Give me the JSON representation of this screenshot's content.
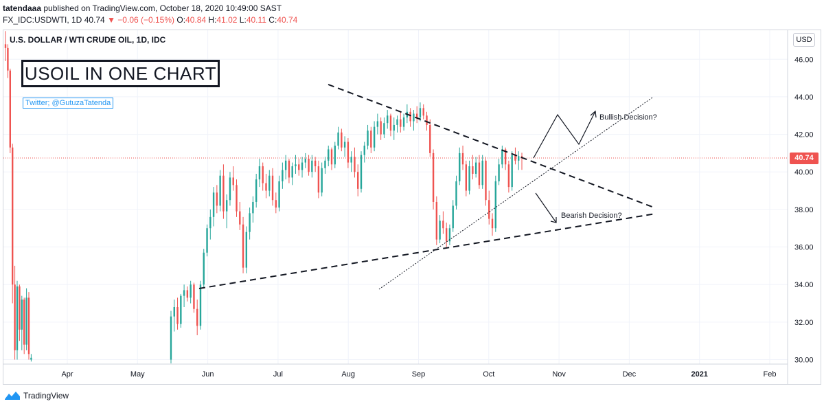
{
  "header": {
    "author": "tatendaaa",
    "published_text": "published on TradingView.com, October 18, 2020 10:49:00 SAST",
    "symbol_line": "FX_IDC:USDWTI, 1D",
    "last": "40.74",
    "arrow": "▼",
    "change": "−0.06 (−0.15%)",
    "open_label": "O:",
    "open": "40.84",
    "high_label": "H:",
    "high": "41.02",
    "low_label": "L:",
    "low": "40.11",
    "close_label": "C:",
    "close": "40.74"
  },
  "chart_title": "U.S. DOLLAR / WTI CRUDE OIL, 1D, IDC",
  "currency_badge": "USD",
  "last_price_tag": "40.74",
  "headline": "USOIL IN ONE CHART",
  "twitter": "Twitter; @GutuzaTatenda",
  "footer": {
    "brand": "TradingView"
  },
  "colors": {
    "up": "#26a69a",
    "down": "#ef5350",
    "text": "#131722",
    "grid": "#f0f3fa"
  },
  "chart_data": {
    "type": "candlestick",
    "y_ticks": [
      "30.00",
      "32.00",
      "34.00",
      "36.00",
      "38.00",
      "40.00",
      "42.00",
      "44.00",
      "46.00"
    ],
    "ylim": [
      29.8,
      47.4
    ],
    "x_ticks": [
      "Apr",
      "May",
      "Jun",
      "Jul",
      "Aug",
      "Sep",
      "Oct",
      "Nov",
      "Dec",
      "2021",
      "Feb"
    ],
    "last_price": 40.74,
    "annotations": [
      "Bullish Decision?",
      "Bearish Decision?"
    ],
    "candles_daily_ohlc_approx": [
      [
        46.8,
        47.5,
        45.9,
        46.6
      ],
      [
        46.6,
        46.8,
        45.0,
        45.4
      ],
      [
        45.4,
        45.5,
        41.0,
        41.3
      ],
      [
        41.3,
        41.5,
        33.0,
        34.0
      ],
      [
        34.0,
        35.0,
        30.0,
        30.5
      ],
      [
        30.5,
        34.2,
        30.0,
        33.9
      ],
      [
        33.9,
        34.0,
        31.0,
        31.6
      ],
      [
        31.6,
        33.4,
        30.5,
        33.2
      ],
      [
        33.2,
        33.3,
        30.3,
        30.8
      ],
      [
        30.8,
        33.8,
        30.5,
        33.3
      ],
      [
        33.3,
        33.6,
        30.0,
        30.3
      ],
      [
        30.0,
        30.3,
        29.9,
        30.1
      ],
      [
        30.0,
        32.6,
        29.8,
        32.3
      ],
      [
        32.3,
        33.2,
        31.5,
        32.8
      ],
      [
        32.8,
        33.3,
        31.6,
        31.9
      ],
      [
        31.9,
        33.5,
        31.7,
        33.4
      ],
      [
        33.4,
        34.0,
        32.8,
        33.7
      ],
      [
        33.7,
        33.9,
        33.1,
        33.3
      ],
      [
        33.3,
        34.2,
        33.0,
        34.0
      ],
      [
        34.0,
        34.1,
        32.5,
        32.7
      ],
      [
        32.7,
        33.2,
        31.3,
        31.8
      ],
      [
        31.8,
        34.2,
        31.6,
        34.0
      ],
      [
        34.0,
        35.9,
        33.8,
        35.7
      ],
      [
        35.7,
        37.2,
        35.5,
        37.0
      ],
      [
        37.0,
        38.0,
        36.4,
        37.6
      ],
      [
        37.6,
        39.2,
        37.1,
        38.9
      ],
      [
        38.9,
        39.3,
        37.8,
        38.2
      ],
      [
        38.2,
        40.1,
        37.9,
        39.8
      ],
      [
        39.8,
        40.4,
        37.5,
        37.9
      ],
      [
        37.9,
        38.8,
        37.0,
        38.5
      ],
      [
        38.5,
        40.0,
        38.2,
        39.7
      ],
      [
        39.7,
        40.3,
        39.0,
        39.3
      ],
      [
        39.3,
        39.6,
        37.6,
        37.9
      ],
      [
        37.9,
        38.4,
        36.9,
        37.2
      ],
      [
        37.2,
        37.6,
        34.6,
        34.9
      ],
      [
        34.9,
        37.1,
        34.6,
        36.8
      ],
      [
        36.8,
        38.1,
        36.4,
        37.8
      ],
      [
        37.8,
        38.7,
        37.3,
        38.4
      ],
      [
        38.4,
        39.9,
        38.1,
        39.6
      ],
      [
        39.6,
        40.7,
        39.2,
        40.3
      ],
      [
        40.3,
        40.5,
        39.0,
        39.4
      ],
      [
        39.4,
        39.9,
        38.6,
        39.0
      ],
      [
        39.0,
        40.1,
        38.7,
        39.8
      ],
      [
        39.8,
        40.2,
        38.2,
        38.5
      ],
      [
        38.5,
        38.9,
        37.8,
        38.1
      ],
      [
        38.1,
        39.8,
        37.9,
        39.5
      ],
      [
        39.5,
        40.5,
        39.1,
        40.1
      ],
      [
        40.1,
        40.9,
        39.6,
        40.6
      ],
      [
        40.6,
        40.7,
        39.4,
        39.7
      ],
      [
        39.7,
        40.5,
        39.3,
        40.3
      ],
      [
        40.3,
        40.9,
        39.9,
        40.4
      ],
      [
        40.4,
        40.7,
        39.8,
        40.1
      ],
      [
        40.1,
        40.8,
        39.7,
        40.5
      ],
      [
        40.5,
        41.0,
        40.2,
        40.7
      ],
      [
        40.7,
        40.9,
        39.8,
        40.0
      ],
      [
        40.0,
        40.9,
        39.7,
        40.6
      ],
      [
        40.6,
        40.8,
        40.0,
        40.3
      ],
      [
        40.3,
        40.6,
        38.6,
        38.9
      ],
      [
        38.9,
        40.5,
        38.7,
        40.2
      ],
      [
        40.2,
        40.8,
        39.9,
        40.6
      ],
      [
        40.6,
        41.4,
        40.3,
        41.2
      ],
      [
        41.2,
        41.3,
        40.1,
        40.4
      ],
      [
        40.4,
        41.6,
        40.2,
        41.4
      ],
      [
        41.4,
        42.4,
        41.2,
        42.1
      ],
      [
        42.1,
        42.3,
        41.1,
        41.3
      ],
      [
        41.3,
        41.9,
        40.8,
        41.6
      ],
      [
        41.6,
        41.8,
        40.2,
        40.5
      ],
      [
        40.5,
        41.1,
        40.0,
        40.8
      ],
      [
        40.8,
        41.3,
        39.7,
        40.0
      ],
      [
        40.0,
        40.4,
        38.7,
        39.1
      ],
      [
        39.1,
        41.1,
        38.9,
        40.9
      ],
      [
        40.9,
        41.6,
        40.5,
        41.4
      ],
      [
        41.4,
        42.5,
        41.2,
        42.2
      ],
      [
        42.2,
        42.4,
        41.0,
        41.3
      ],
      [
        41.3,
        42.7,
        41.1,
        42.4
      ],
      [
        42.4,
        43.1,
        42.0,
        42.7
      ],
      [
        42.7,
        42.9,
        41.7,
        42.0
      ],
      [
        42.0,
        42.9,
        41.8,
        42.6
      ],
      [
        42.6,
        43.3,
        42.3,
        43.0
      ],
      [
        43.0,
        43.1,
        41.9,
        42.2
      ],
      [
        42.2,
        42.9,
        41.7,
        42.5
      ],
      [
        42.5,
        43.0,
        42.1,
        42.8
      ],
      [
        42.8,
        43.2,
        42.1,
        42.4
      ],
      [
        42.4,
        43.1,
        42.2,
        42.9
      ],
      [
        42.9,
        43.6,
        42.6,
        43.2
      ],
      [
        43.2,
        43.4,
        42.4,
        42.7
      ],
      [
        42.7,
        43.3,
        42.2,
        43.1
      ],
      [
        43.1,
        43.5,
        42.6,
        42.9
      ],
      [
        42.9,
        43.7,
        42.7,
        43.4
      ],
      [
        43.4,
        43.6,
        42.8,
        43.0
      ],
      [
        43.0,
        43.2,
        42.2,
        42.5
      ],
      [
        42.5,
        42.8,
        40.8,
        41.0
      ],
      [
        41.0,
        41.2,
        38.0,
        38.4
      ],
      [
        38.4,
        38.7,
        36.1,
        36.4
      ],
      [
        36.4,
        37.7,
        36.2,
        37.4
      ],
      [
        37.4,
        37.9,
        36.7,
        37.0
      ],
      [
        37.0,
        37.3,
        36.0,
        36.3
      ],
      [
        36.3,
        37.2,
        36.1,
        37.0
      ],
      [
        37.0,
        38.5,
        36.8,
        38.2
      ],
      [
        38.2,
        39.8,
        38.0,
        39.5
      ],
      [
        39.5,
        41.3,
        39.3,
        41.0
      ],
      [
        41.0,
        41.4,
        40.1,
        40.4
      ],
      [
        40.4,
        40.6,
        38.7,
        39.0
      ],
      [
        39.0,
        40.6,
        38.8,
        40.3
      ],
      [
        40.3,
        40.9,
        39.6,
        39.9
      ],
      [
        39.9,
        40.8,
        39.7,
        40.5
      ],
      [
        40.5,
        40.9,
        39.1,
        39.3
      ],
      [
        39.3,
        40.9,
        39.1,
        40.6
      ],
      [
        40.6,
        40.8,
        38.2,
        38.5
      ],
      [
        38.5,
        39.0,
        37.2,
        37.5
      ],
      [
        37.5,
        37.8,
        36.6,
        37.0
      ],
      [
        37.0,
        39.8,
        36.8,
        39.5
      ],
      [
        39.5,
        40.7,
        39.3,
        40.4
      ],
      [
        40.4,
        41.4,
        40.2,
        41.2
      ],
      [
        41.2,
        41.3,
        40.1,
        40.4
      ],
      [
        40.4,
        40.6,
        38.9,
        39.2
      ],
      [
        39.2,
        41.1,
        39.0,
        40.9
      ],
      [
        40.9,
        41.3,
        40.4,
        40.6
      ],
      [
        40.6,
        41.1,
        40.1,
        40.84
      ],
      [
        40.84,
        41.02,
        40.11,
        40.74
      ]
    ]
  }
}
